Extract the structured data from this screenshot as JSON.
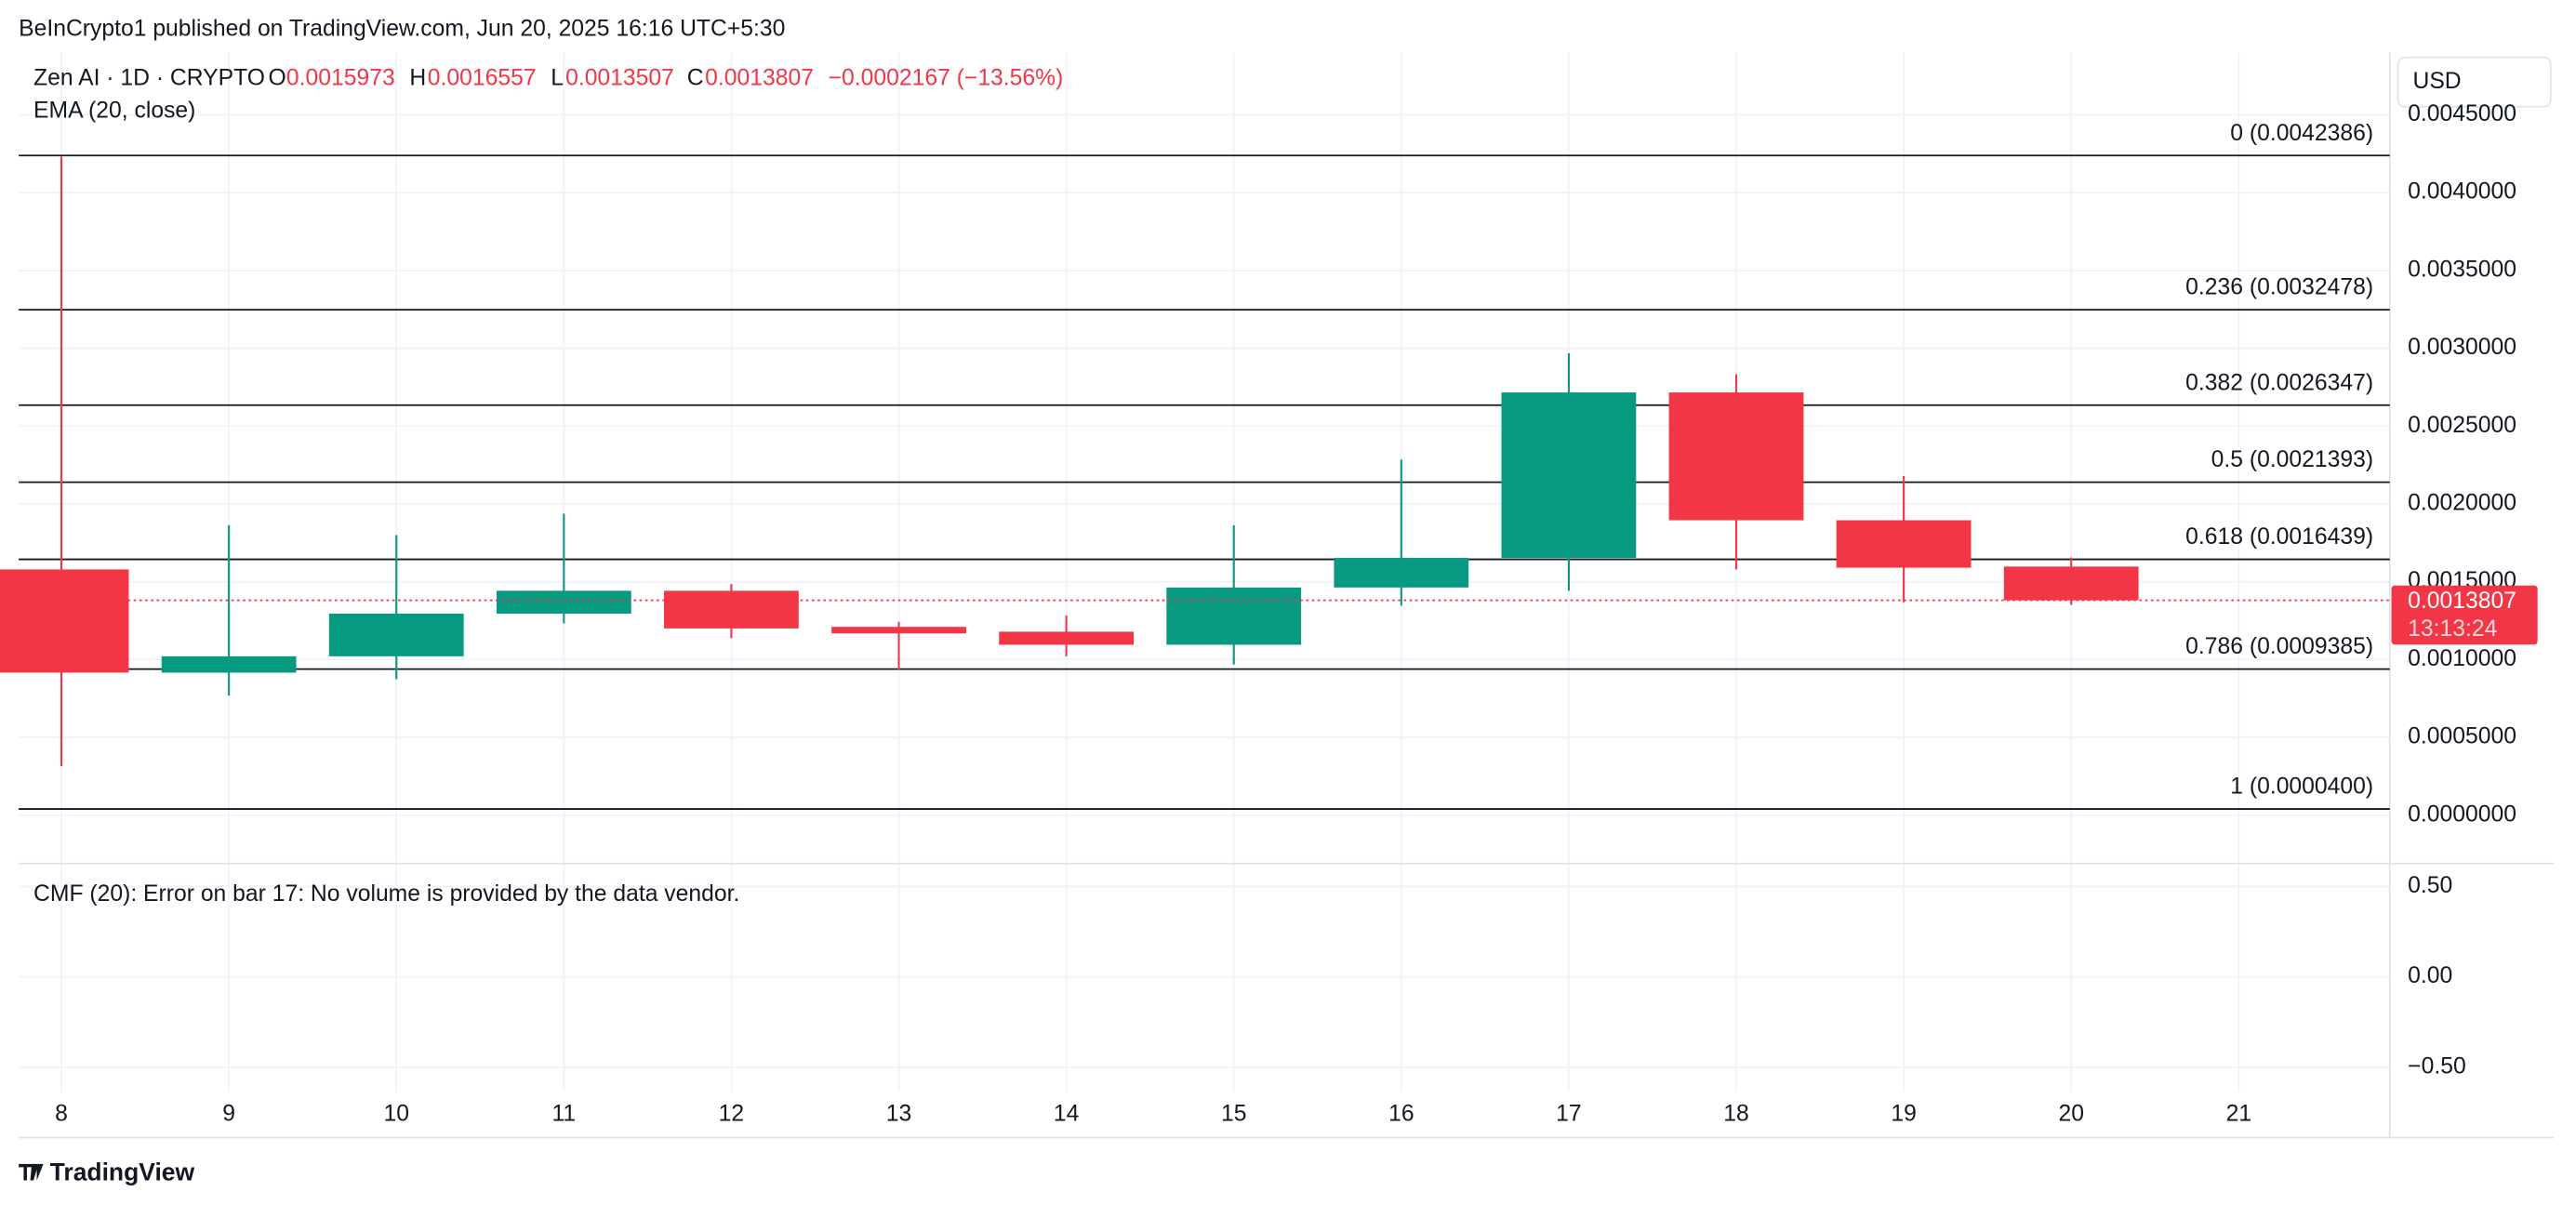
{
  "header": {
    "publisher": "BeInCrypto1 published on TradingView.com, Jun 20, 2025 16:16 UTC+5:30",
    "symbol": "Zen AI · 1D · CRYPTO",
    "o_label": "O",
    "open": "0.0015973",
    "h_label": "H",
    "high": "0.0016557",
    "l_label": "L",
    "low": "0.0013507",
    "c_label": "C",
    "close": "0.0013807",
    "change": "−0.0002167 (−13.56%)",
    "indicator": "EMA (20, close)",
    "currency": "USD",
    "price_tag": "0.0013807",
    "countdown": "13:13:24",
    "brand": "TradingView"
  },
  "chart_data": [
    {
      "type": "candlestick",
      "categories": [
        "8",
        "9",
        "10",
        "11",
        "12",
        "13",
        "14",
        "15",
        "16",
        "17",
        "18",
        "19",
        "20",
        "21"
      ],
      "open": [
        0.001579,
        0.000916,
        0.001021,
        0.001295,
        0.001442,
        0.00121,
        0.001179,
        0.001095,
        0.001463,
        0.001653,
        0.002716,
        0.001895,
        0.0015973,
        null
      ],
      "high": [
        0.004232,
        0.001863,
        0.0018,
        0.001937,
        0.001484,
        0.001242,
        0.001284,
        0.001863,
        0.002284,
        0.002968,
        0.002832,
        0.002179,
        0.0016557,
        null
      ],
      "low": [
        0.000316,
        0.000768,
        0.000874,
        0.001232,
        0.001137,
        0.000937,
        0.001021,
        0.000968,
        0.001347,
        0.001442,
        0.001579,
        0.001368,
        0.0013507,
        null
      ],
      "close": [
        0.000916,
        0.001021,
        0.001295,
        0.001442,
        0.0012,
        0.001168,
        0.001095,
        0.001463,
        0.001653,
        0.002716,
        0.001895,
        0.00159,
        0.0013807,
        null
      ],
      "up_color": "#089981",
      "down_color": "#f23645",
      "ylim": [
        -0.0003,
        0.0049
      ],
      "yticks": [
        {
          "value": 0,
          "label": "0.0000000"
        },
        {
          "value": 0.0005,
          "label": "0.0005000"
        },
        {
          "value": 0.001,
          "label": "0.0010000"
        },
        {
          "value": 0.0015,
          "label": "0.0015000"
        },
        {
          "value": 0.002,
          "label": "0.0020000"
        },
        {
          "value": 0.0025,
          "label": "0.0025000"
        },
        {
          "value": 0.003,
          "label": "0.0030000"
        },
        {
          "value": 0.0035,
          "label": "0.0035000"
        },
        {
          "value": 0.004,
          "label": "0.0040000"
        },
        {
          "value": 0.0045,
          "label": "0.0045000"
        }
      ],
      "fib_levels": [
        {
          "value": 0.0042386,
          "label": "0 (0.0042386)"
        },
        {
          "value": 0.0032478,
          "label": "0.236 (0.0032478)"
        },
        {
          "value": 0.0026347,
          "label": "0.382 (0.0026347)"
        },
        {
          "value": 0.0021393,
          "label": "0.5 (0.0021393)"
        },
        {
          "value": 0.0016439,
          "label": "0.618 (0.0016439)"
        },
        {
          "value": 0.0009385,
          "label": "0.786 (0.0009385)"
        },
        {
          "value": 4e-05,
          "label": "1 (0.0000400)"
        }
      ],
      "grid": true
    },
    {
      "type": "indicator",
      "title": "CMF (20): Error on bar 17: No volume is provided by the data vendor.",
      "ylim": [
        -0.636,
        0.618
      ],
      "yticks": [
        {
          "value": 0.5,
          "label": "0.50"
        },
        {
          "value": 0,
          "label": "0.00"
        },
        {
          "value": -0.5,
          "label": "−0.50"
        }
      ],
      "grid": true
    }
  ]
}
